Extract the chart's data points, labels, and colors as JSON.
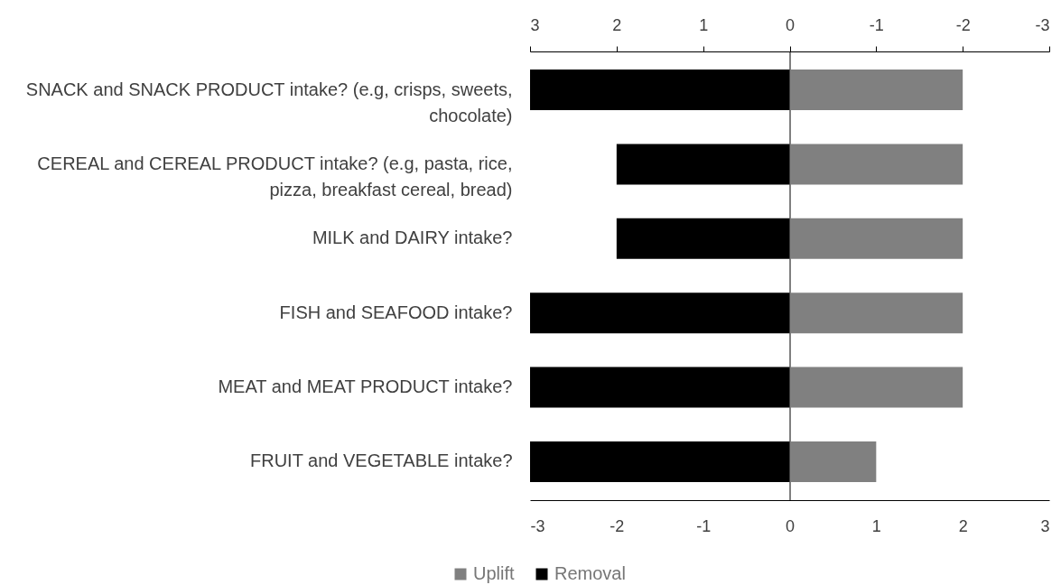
{
  "chart_data": {
    "type": "bar",
    "orientation": "horizontal",
    "stacked": true,
    "categories": [
      "SNACK and SNACK PRODUCT intake? (e.g, crisps, sweets, chocolate)",
      "CEREAL and CEREAL PRODUCT intake? (e.g, pasta, rice, pizza, breakfast cereal, bread)",
      "MILK and DAIRY intake?",
      "FISH and SEAFOOD intake?",
      "MEAT and MEAT PRODUCT intake?",
      "FRUIT and VEGETABLE intake?"
    ],
    "series": [
      {
        "name": "Uplift",
        "color": "#808080",
        "values": [
          2,
          2,
          2,
          2,
          2,
          1
        ]
      },
      {
        "name": "Removal",
        "color": "#000000",
        "values": [
          -3,
          -2,
          -2,
          -3,
          -3,
          -3
        ]
      }
    ],
    "xlim": [
      -3,
      3
    ],
    "xticks": [
      -3,
      -2,
      -1,
      0,
      1,
      2,
      3
    ],
    "x2lim": [
      3,
      -3
    ],
    "x2ticks": [
      3,
      2,
      1,
      0,
      -1,
      -2,
      -3
    ],
    "legend": "bottom"
  }
}
